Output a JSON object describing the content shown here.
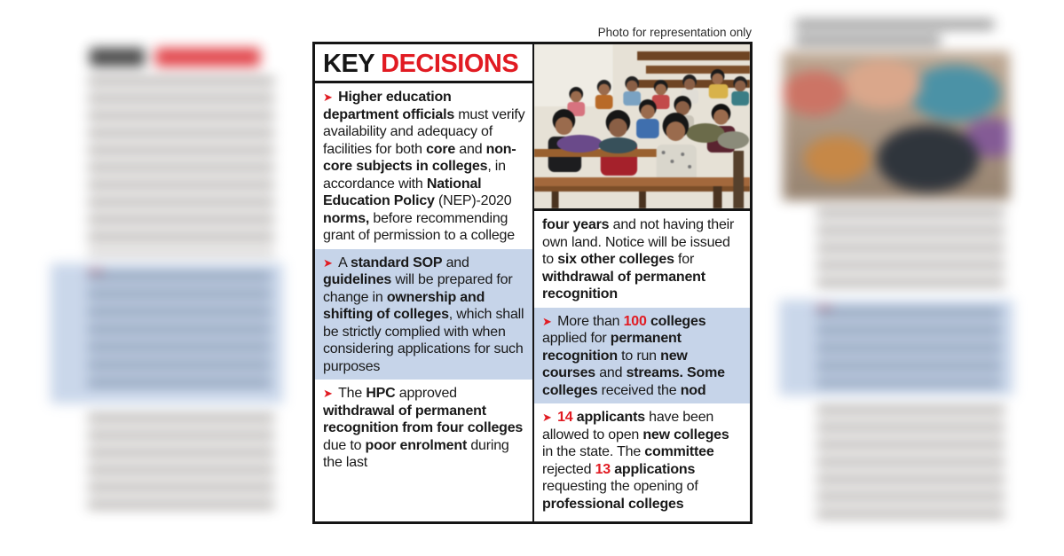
{
  "caption": "Photo for representation only",
  "header": {
    "key": "KEY",
    "decisions": "DECISIONS"
  },
  "glyphs": {
    "bullet_arrow": "➤"
  },
  "colors": {
    "accent_red": "#e11b22",
    "highlight_blue": "#c6d4e9",
    "text": "#191919"
  },
  "left_column": {
    "bullets": [
      {
        "arrow": true,
        "highlight": false,
        "segments": [
          {
            "text": "Higher education department officials",
            "bold": true
          },
          {
            "text": " must verify availability and adequacy of facilities for both "
          },
          {
            "text": "core",
            "bold": true
          },
          {
            "text": " and "
          },
          {
            "text": "non-core subjects in colleges",
            "bold": true
          },
          {
            "text": ", in accordance with "
          },
          {
            "text": "National Education Policy",
            "bold": true
          },
          {
            "text": " (NEP)-2020 "
          },
          {
            "text": "norms,",
            "bold": true
          },
          {
            "text": " before recommending grant of permission to a college"
          }
        ]
      },
      {
        "arrow": true,
        "highlight": true,
        "segments": [
          {
            "text": "A "
          },
          {
            "text": "standard SOP",
            "bold": true
          },
          {
            "text": " and "
          },
          {
            "text": "guidelines",
            "bold": true
          },
          {
            "text": " will be prepared for change in "
          },
          {
            "text": "ownership and shifting of colleges",
            "bold": true
          },
          {
            "text": ", which shall be strictly complied with when considering applications for such purposes"
          }
        ]
      },
      {
        "arrow": true,
        "highlight": false,
        "segments": [
          {
            "text": "The "
          },
          {
            "text": "HPC",
            "bold": true
          },
          {
            "text": " approved "
          },
          {
            "text": "withdrawal of permanent recognition from four colleges",
            "bold": true
          },
          {
            "text": " due to "
          },
          {
            "text": "poor enrolment",
            "bold": true
          },
          {
            "text": " during the last"
          }
        ]
      }
    ]
  },
  "right_column": {
    "bullets": [
      {
        "arrow": false,
        "highlight": false,
        "segments": [
          {
            "text": "four years",
            "bold": true
          },
          {
            "text": " and not having their own land. Notice will be issued to "
          },
          {
            "text": "six other colleges",
            "bold": true
          },
          {
            "text": " for "
          },
          {
            "text": "withdrawal of permanent recognition",
            "bold": true
          }
        ]
      },
      {
        "arrow": true,
        "highlight": true,
        "segments": [
          {
            "text": "More than "
          },
          {
            "text": "100",
            "bold": true,
            "red": true
          },
          {
            "text": " "
          },
          {
            "text": "colleges",
            "bold": true
          },
          {
            "text": " applied for "
          },
          {
            "text": "permanent recognition",
            "bold": true
          },
          {
            "text": " to run "
          },
          {
            "text": "new courses",
            "bold": true
          },
          {
            "text": " and "
          },
          {
            "text": "streams. Some colleges",
            "bold": true
          },
          {
            "text": " received the "
          },
          {
            "text": "nod",
            "bold": true
          }
        ]
      },
      {
        "arrow": true,
        "highlight": false,
        "segments": [
          {
            "text": "14",
            "bold": true,
            "red": true
          },
          {
            "text": " applicants",
            "bold": true
          },
          {
            "text": " have been allowed to open "
          },
          {
            "text": "new colleges",
            "bold": true
          },
          {
            "text": " in the state. The "
          },
          {
            "text": "committee",
            "bold": true
          },
          {
            "text": " rejected "
          },
          {
            "text": "13",
            "bold": true,
            "red": true
          },
          {
            "text": " applications",
            "bold": true
          },
          {
            "text": " requesting the opening of "
          },
          {
            "text": "professional colleges",
            "bold": true
          }
        ]
      }
    ]
  }
}
